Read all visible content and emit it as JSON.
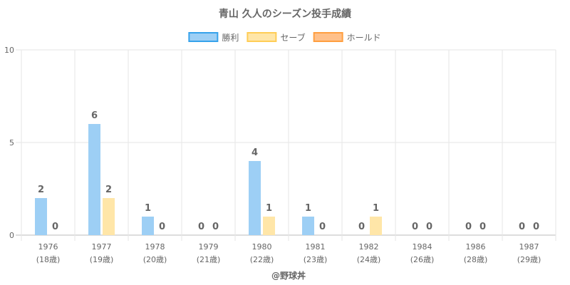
{
  "chart_data": {
    "type": "bar",
    "title": "青山 久人のシーズン投手成績",
    "categories": [
      {
        "year": "1976",
        "age": "(18歳)"
      },
      {
        "year": "1977",
        "age": "(19歳)"
      },
      {
        "year": "1978",
        "age": "(20歳)"
      },
      {
        "year": "1979",
        "age": "(21歳)"
      },
      {
        "year": "1980",
        "age": "(22歳)"
      },
      {
        "year": "1981",
        "age": "(23歳)"
      },
      {
        "year": "1982",
        "age": "(24歳)"
      },
      {
        "year": "1984",
        "age": "(26歳)"
      },
      {
        "year": "1986",
        "age": "(28歳)"
      },
      {
        "year": "1987",
        "age": "(29歳)"
      }
    ],
    "series": [
      {
        "name": "勝利",
        "values": [
          2,
          6,
          1,
          0,
          4,
          1,
          0,
          0,
          0,
          0
        ],
        "fill": "#9dcff5",
        "stroke": "#36a2eb"
      },
      {
        "name": "セーブ",
        "values": [
          0,
          2,
          0,
          0,
          1,
          0,
          1,
          0,
          0,
          0
        ],
        "fill": "#ffe6a8",
        "stroke": "#ffcd56"
      },
      {
        "name": "ホールド",
        "values": [
          null,
          null,
          null,
          null,
          null,
          null,
          null,
          null,
          null,
          null
        ],
        "fill": "#ffc08a",
        "stroke": "#ff9f40"
      }
    ],
    "ylim": [
      0,
      10
    ],
    "yticks": [
      "0",
      "5",
      "10"
    ],
    "grid": true,
    "legend_position": "top"
  },
  "footer": {
    "credit": "@野球丼"
  }
}
